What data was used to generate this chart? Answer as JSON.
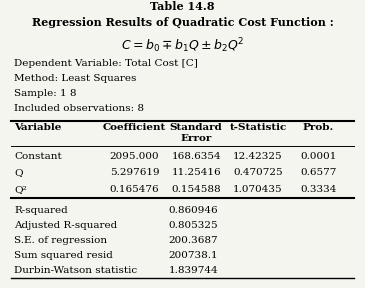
{
  "title1": "Table 14.8",
  "title2": "Regression Results of Quadratic Cost Function :",
  "formula": "$C = b_0 \\mp b_1Q \\pm b_2Q^2$",
  "meta": [
    "Dependent Variable: Total Cost [C]",
    "Method: Least Squares",
    "Sample: 1 8",
    "Included observations: 8"
  ],
  "col_headers": [
    "Variable",
    "Coefficient",
    "Standard\nError",
    "t-Statistic",
    "Prob."
  ],
  "rows": [
    [
      "Constant",
      "2095.000",
      "168.6354",
      "12.42325",
      "0.0001"
    ],
    [
      "Q",
      "5.297619",
      "11.25416",
      "0.470725",
      "0.6577"
    ],
    [
      "Q²",
      "0.165476",
      "0.154588",
      "1.070435",
      "0.3334"
    ]
  ],
  "stats": [
    [
      "R-squared",
      "0.860946"
    ],
    [
      "Adjusted R-squared",
      "0.805325"
    ],
    [
      "S.E. of regression",
      "200.3687"
    ],
    [
      "Sum squared resid",
      "200738.1"
    ],
    [
      "Durbin-Watson statistic",
      "1.839744"
    ]
  ],
  "bg_color": "#f5f5f0",
  "font_size": 7.5
}
